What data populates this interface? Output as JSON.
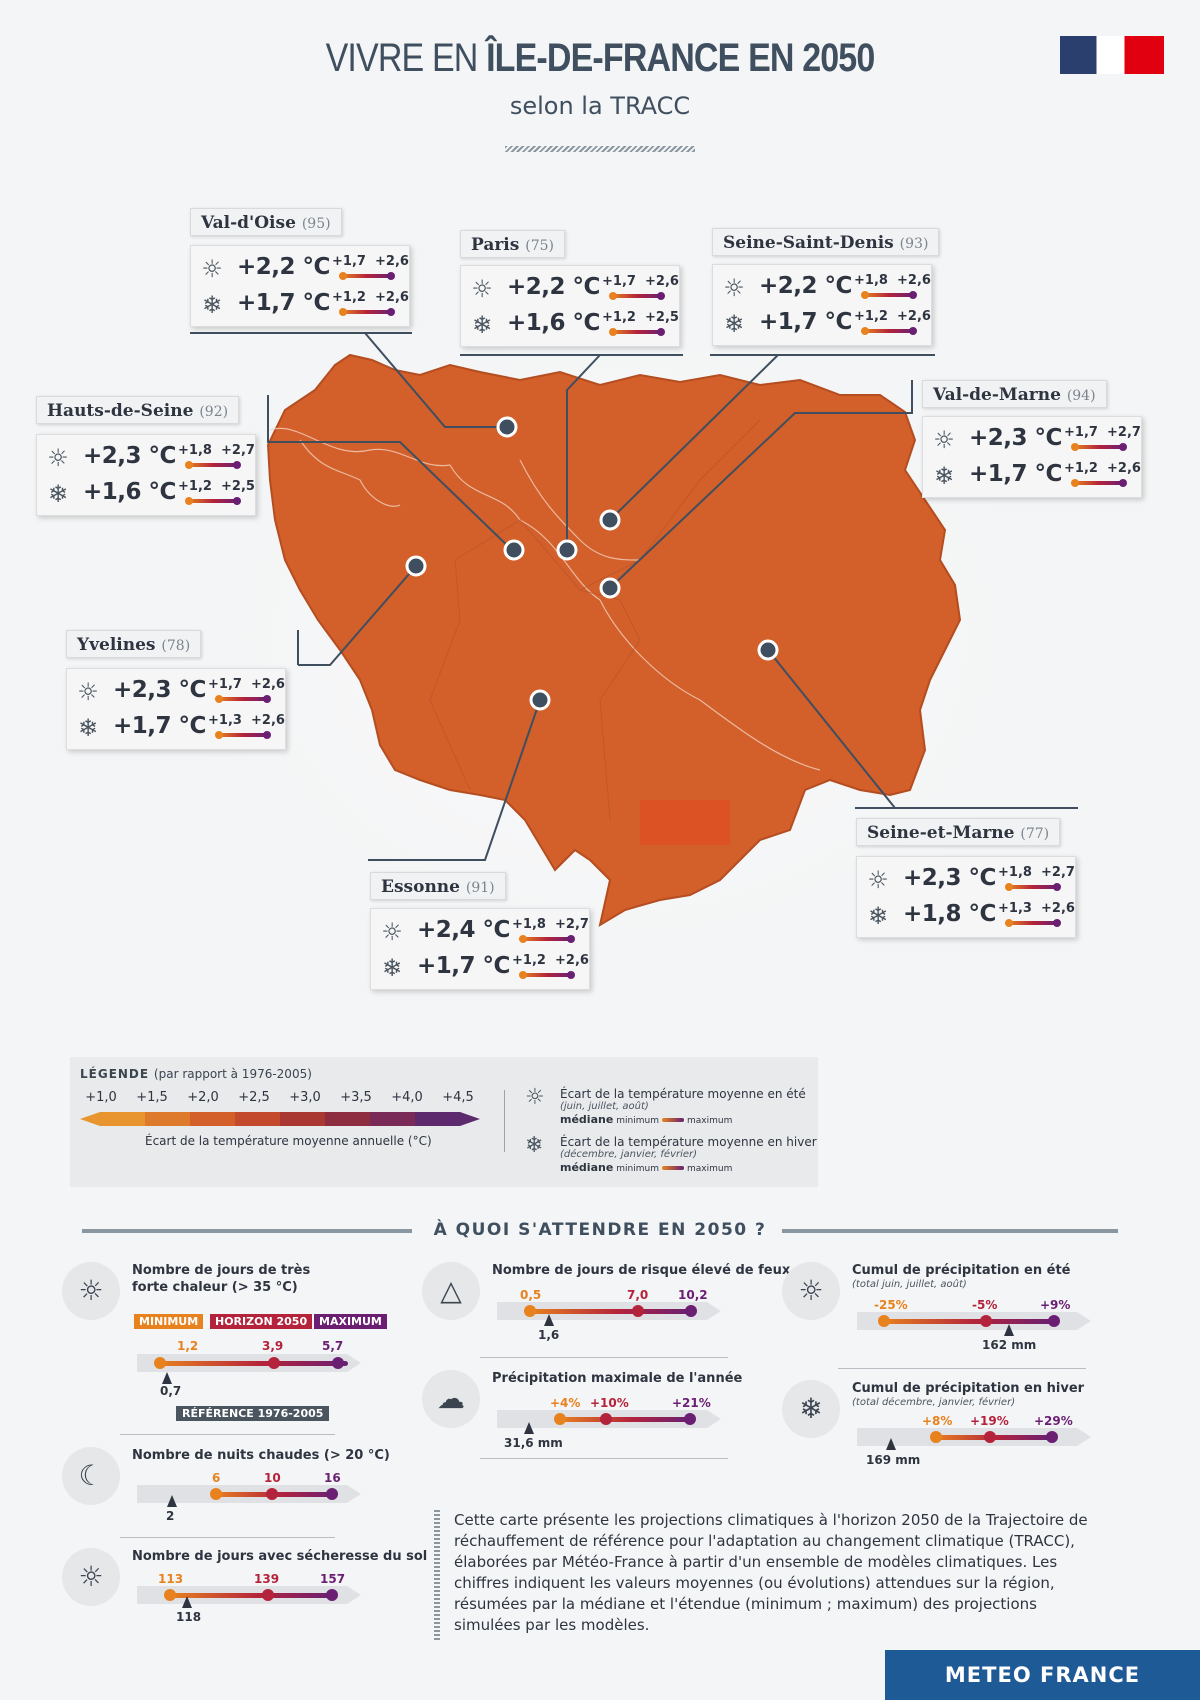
{
  "header": {
    "title_light": "VIVRE EN ",
    "title_bold": "ÎLE-DE-FRANCE EN 2050",
    "subtitle": "selon la TRACC"
  },
  "colors": {
    "map": "#d35f2a",
    "min": "#e8821f",
    "median": "#b4233b",
    "max": "#6a1f73",
    "brand": "#1e5a96"
  },
  "departments": [
    {
      "name": "Val-d'Oise",
      "code": "(95)",
      "summer": {
        "median": "+2,2 °C",
        "min": "+1,7",
        "max": "+2,6"
      },
      "winter": {
        "median": "+1,7 °C",
        "min": "+1,2",
        "max": "+2,6"
      }
    },
    {
      "name": "Paris",
      "code": "(75)",
      "summer": {
        "median": "+2,2 °C",
        "min": "+1,7",
        "max": "+2,6"
      },
      "winter": {
        "median": "+1,6 °C",
        "min": "+1,2",
        "max": "+2,5"
      }
    },
    {
      "name": "Seine-Saint-Denis",
      "code": "(93)",
      "summer": {
        "median": "+2,2 °C",
        "min": "+1,8",
        "max": "+2,6"
      },
      "winter": {
        "median": "+1,7 °C",
        "min": "+1,2",
        "max": "+2,6"
      }
    },
    {
      "name": "Hauts-de-Seine",
      "code": "(92)",
      "summer": {
        "median": "+2,3 °C",
        "min": "+1,8",
        "max": "+2,7"
      },
      "winter": {
        "median": "+1,6 °C",
        "min": "+1,2",
        "max": "+2,5"
      }
    },
    {
      "name": "Val-de-Marne",
      "code": "(94)",
      "summer": {
        "median": "+2,3 °C",
        "min": "+1,7",
        "max": "+2,7"
      },
      "winter": {
        "median": "+1,7 °C",
        "min": "+1,2",
        "max": "+2,6"
      }
    },
    {
      "name": "Yvelines",
      "code": "(78)",
      "summer": {
        "median": "+2,3 °C",
        "min": "+1,7",
        "max": "+2,6"
      },
      "winter": {
        "median": "+1,7 °C",
        "min": "+1,3",
        "max": "+2,6"
      }
    },
    {
      "name": "Seine-et-Marne",
      "code": "(77)",
      "summer": {
        "median": "+2,3 °C",
        "min": "+1,8",
        "max": "+2,7"
      },
      "winter": {
        "median": "+1,8 °C",
        "min": "+1,3",
        "max": "+2,6"
      }
    },
    {
      "name": "Essonne",
      "code": "(91)",
      "summer": {
        "median": "+2,4 °C",
        "min": "+1,8",
        "max": "+2,7"
      },
      "winter": {
        "median": "+1,7 °C",
        "min": "+1,2",
        "max": "+2,6"
      }
    }
  ],
  "legend": {
    "title": "LÉGENDE",
    "title_note": "(par rapport à 1976-2005)",
    "ticks": [
      "+1,0",
      "+1,5",
      "+2,0",
      "+2,5",
      "+3,0",
      "+3,5",
      "+4,0",
      "+4,5"
    ],
    "scale_colors": [
      "#e8952f",
      "#de7a2c",
      "#d35f2a",
      "#c34a2c",
      "#a93732",
      "#8f2d40",
      "#7a2a56",
      "#5e2a6e"
    ],
    "caption": "Écart de la température moyenne annuelle (°C)",
    "summer": {
      "title": "Écart de la température moyenne en été",
      "months": "(juin, juillet, août)"
    },
    "winter": {
      "title": "Écart de la température moyenne en hiver",
      "months": "(décembre, janvier, février)"
    },
    "median": "médiane",
    "minimum": "minimum",
    "maximum": "maximum"
  },
  "section_title": "À QUOI S'ATTENDRE EN 2050 ?",
  "indicators": {
    "hot_days": {
      "title1": "Nombre de jours de très",
      "title2": "forte chaleur (> 35 °C)",
      "min": "1,2",
      "median": "3,9",
      "max": "5,7",
      "ref": "0,7",
      "lbl_min": "MINIMUM",
      "lbl_med": "HORIZON 2050",
      "lbl_max": "MAXIMUM",
      "lbl_ref": "RÉFÉRENCE 1976-2005"
    },
    "warm_nights": {
      "title": "Nombre de nuits chaudes (> 20 °C)",
      "min": "6",
      "median": "10",
      "max": "16",
      "ref": "2"
    },
    "drought": {
      "title": "Nombre de jours avec sécheresse du sol",
      "min": "113",
      "median": "139",
      "max": "157",
      "ref": "118"
    },
    "fire": {
      "title": "Nombre de jours de risque élevé de feux",
      "min": "0,5",
      "median": "7,0",
      "max": "10,2",
      "ref": "1,6"
    },
    "max_precip": {
      "title": "Précipitation maximale de l'année",
      "min": "+4%",
      "median": "+10%",
      "max": "+21%",
      "ref": "31,6 mm"
    },
    "summer_precip": {
      "title": "Cumul de précipitation en été",
      "sub": "(total juin, juillet, août)",
      "min": "-25%",
      "median": "-5%",
      "max": "+9%",
      "ref": "162 mm"
    },
    "winter_precip": {
      "title": "Cumul de précipitation en hiver",
      "sub": "(total décembre, janvier, février)",
      "min": "+8%",
      "median": "+19%",
      "max": "+29%",
      "ref": "169 mm"
    }
  },
  "note": "Cette carte présente les projections climatiques à l'horizon 2050 de la Trajectoire de réchauffement de référence pour l'adaptation au changement climatique (TRACC), élaborées par Météo-France à partir d'un ensemble de modèles climatiques. Les chiffres indiquent les valeurs moyennes (ou évolutions) attendues sur la région, résumées par la médiane et l'étendue (minimum ; maximum) des projections simulées par les modèles.",
  "brand": "METEO FRANCE"
}
